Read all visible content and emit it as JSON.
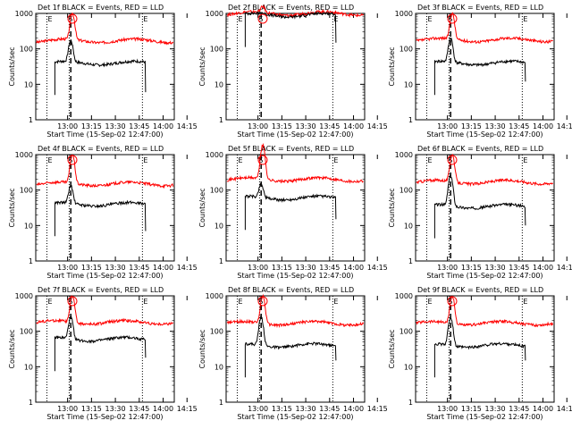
{
  "page": {
    "background": "#ffffff"
  },
  "common": {
    "ylabel": "Counts/sec",
    "xlabel": "Start Time (15-Sep-02 12:47:00)",
    "x_ticks": [
      "13:00",
      "13:15",
      "13:30",
      "13:45",
      "14:00",
      "14:15"
    ],
    "y_ticks": [
      "1",
      "10",
      "100",
      "1000"
    ],
    "marker_letters": [
      "E",
      "S",
      "E"
    ],
    "colors": {
      "events": "#000000",
      "lld": "#ff0000"
    }
  },
  "chart_data": [
    {
      "type": "line",
      "title": "Det 1f BLACK = Events, RED = LLD",
      "x_range_min": [
        -7,
        80
      ],
      "ylim": [
        1,
        1000
      ],
      "log_y": true,
      "dotted_x_min": [
        0,
        14,
        60
      ],
      "dashed_x_min": 15,
      "start_min": 5,
      "end_min": 62,
      "events_base": 40,
      "events_peak": 170,
      "events_peak_min": 15,
      "lld_base": 170,
      "lld_peak": 1000,
      "lld_peak_min": 16,
      "end_drop": 6
    },
    {
      "type": "line",
      "title": "Det 2f BLACK = Events, RED = LLD",
      "x_range_min": [
        -7,
        80
      ],
      "ylim": [
        1,
        1000
      ],
      "log_y": true,
      "dotted_x_min": [
        0,
        14,
        60
      ],
      "dashed_x_min": 15,
      "start_min": 5,
      "end_min": 62,
      "events_base": 900,
      "events_peak": 1000,
      "events_peak_min": 15,
      "lld_base": 1000,
      "lld_peak": 1500,
      "lld_peak_min": 16,
      "end_drop": 150
    },
    {
      "type": "line",
      "title": "Det 3f BLACK = Events, RED = LLD",
      "x_range_min": [
        -7,
        80
      ],
      "ylim": [
        1,
        1000
      ],
      "log_y": true,
      "dotted_x_min": [
        0,
        14,
        60
      ],
      "dashed_x_min": 15,
      "start_min": 5,
      "end_min": 62,
      "events_base": 40,
      "events_peak": 200,
      "events_peak_min": 15,
      "lld_base": 180,
      "lld_peak": 1000,
      "lld_peak_min": 16,
      "end_drop": 12
    },
    {
      "type": "line",
      "title": "Det 4f BLACK = Events, RED = LLD",
      "x_range_min": [
        -7,
        80
      ],
      "ylim": [
        1,
        1000
      ],
      "log_y": true,
      "dotted_x_min": [
        0,
        14,
        60
      ],
      "dashed_x_min": 15,
      "start_min": 5,
      "end_min": 62,
      "events_base": 40,
      "events_peak": 130,
      "events_peak_min": 15,
      "lld_base": 150,
      "lld_peak": 1000,
      "lld_peak_min": 16,
      "end_drop": 7
    },
    {
      "type": "line",
      "title": "Det 5f BLACK = Events, RED = LLD",
      "x_range_min": [
        -7,
        80
      ],
      "ylim": [
        1,
        1000
      ],
      "log_y": true,
      "dotted_x_min": [
        0,
        14,
        60
      ],
      "dashed_x_min": 15,
      "start_min": 5,
      "end_min": 62,
      "events_base": 60,
      "events_peak": 150,
      "events_peak_min": 15,
      "lld_base": 200,
      "lld_peak": 1800,
      "lld_peak_min": 16,
      "end_drop": 15
    },
    {
      "type": "line",
      "title": "Det 6f BLACK = Events, RED = LLD",
      "x_range_min": [
        -7,
        80
      ],
      "ylim": [
        1,
        1000
      ],
      "log_y": true,
      "dotted_x_min": [
        0,
        14,
        60
      ],
      "dashed_x_min": 15,
      "start_min": 5,
      "end_min": 62,
      "events_base": 35,
      "events_peak": 250,
      "events_peak_min": 15,
      "lld_base": 170,
      "lld_peak": 1000,
      "lld_peak_min": 16,
      "end_drop": 10
    },
    {
      "type": "line",
      "title": "Det 7f BLACK = Events, RED = LLD",
      "x_range_min": [
        -7,
        80
      ],
      "ylim": [
        1,
        1000
      ],
      "log_y": true,
      "dotted_x_min": [
        0,
        14,
        60
      ],
      "dashed_x_min": 15,
      "start_min": 5,
      "end_min": 62,
      "events_base": 60,
      "events_peak": 250,
      "events_peak_min": 15,
      "lld_base": 180,
      "lld_peak": 1000,
      "lld_peak_min": 16,
      "end_drop": 18
    },
    {
      "type": "line",
      "title": "Det 8f BLACK = Events, RED = LLD",
      "x_range_min": [
        -7,
        80
      ],
      "ylim": [
        1,
        1000
      ],
      "log_y": true,
      "dotted_x_min": [
        0,
        14,
        60
      ],
      "dashed_x_min": 15,
      "start_min": 5,
      "end_min": 62,
      "events_base": 40,
      "events_peak": 250,
      "events_peak_min": 15,
      "lld_base": 170,
      "lld_peak": 1000,
      "lld_peak_min": 16,
      "end_drop": 15
    },
    {
      "type": "line",
      "title": "Det 9f BLACK = Events, RED = LLD",
      "x_range_min": [
        -7,
        80
      ],
      "ylim": [
        1,
        1000
      ],
      "log_y": true,
      "dotted_x_min": [
        0,
        14,
        60
      ],
      "dashed_x_min": 15,
      "start_min": 5,
      "end_min": 62,
      "events_base": 40,
      "events_peak": 250,
      "events_peak_min": 15,
      "lld_base": 170,
      "lld_peak": 1000,
      "lld_peak_min": 16,
      "end_drop": 15
    }
  ]
}
